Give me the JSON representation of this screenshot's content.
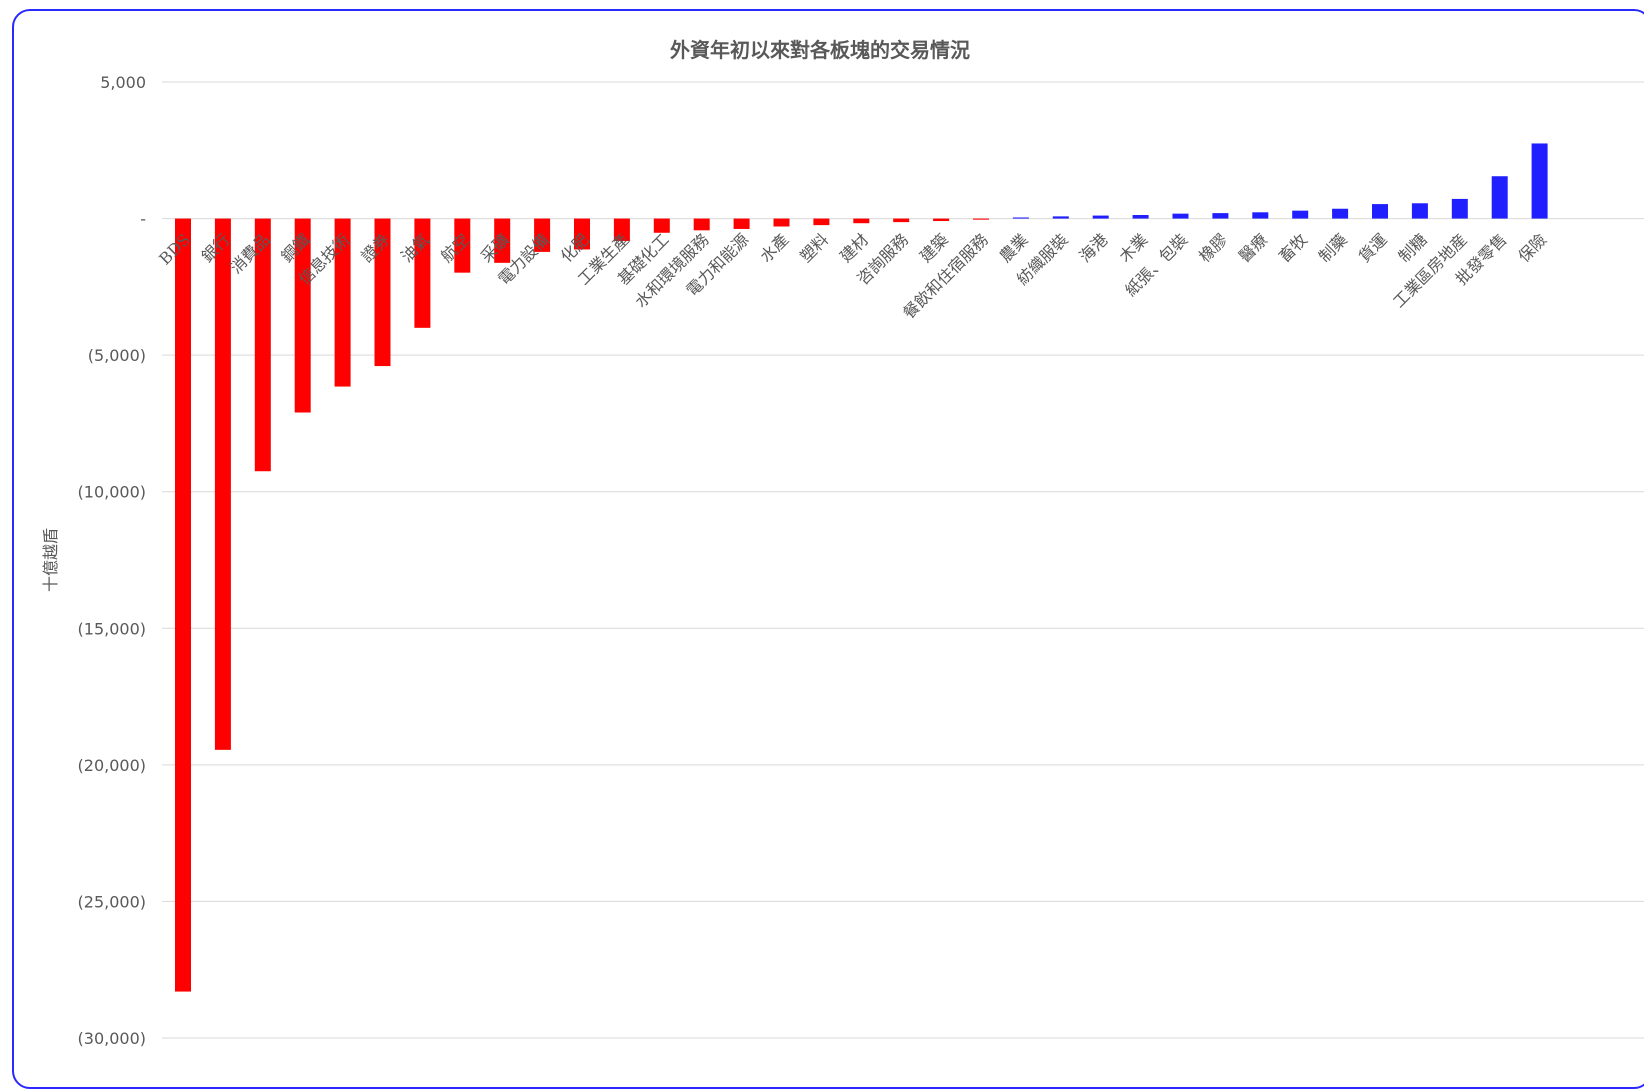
{
  "chart_data": {
    "type": "bar",
    "title": "外資年初以來對各板塊的交易情況",
    "ylabel": "十億越盾",
    "xlabel": "",
    "ylim": [
      -30000,
      5000
    ],
    "yticks": [
      5000,
      0,
      -5000,
      -10000,
      -15000,
      -20000,
      -25000,
      -30000
    ],
    "ytick_labels": [
      "5,000",
      "-",
      "(5,000)",
      "(10,000)",
      "(15,000)",
      "(20,000)",
      "(25,000)",
      "(30,000)"
    ],
    "grid": true,
    "negative_color": "#ff0000",
    "positive_color": "#1f1fff",
    "categories": [
      "BDS",
      "銀行",
      "消費品",
      "鋼鐵",
      "信息技術",
      "證券",
      "油氣",
      "航空",
      "采礦",
      "電力設備",
      "化肥",
      "工業生產",
      "基礎化工",
      "水和環境服務",
      "電力和能源",
      "水產",
      "塑料",
      "建材",
      "咨詢服務",
      "建築",
      "餐飲和住宿服務",
      "農業",
      "紡織服裝",
      "海港",
      "木業",
      "紙張、包裝",
      "橡膠",
      "醫療",
      "畜牧",
      "制藥",
      "貨運",
      "制糖",
      "工業區房地産",
      "批發零售",
      "保險"
    ],
    "values": [
      -28300,
      -19450,
      -9250,
      -7100,
      -6150,
      -5400,
      -4000,
      -1980,
      -1620,
      -1220,
      -1130,
      -820,
      -520,
      -430,
      -380,
      -290,
      -240,
      -170,
      -130,
      -90,
      -40,
      40,
      80,
      110,
      130,
      180,
      200,
      230,
      290,
      360,
      530,
      560,
      720,
      1550,
      2750
    ]
  }
}
